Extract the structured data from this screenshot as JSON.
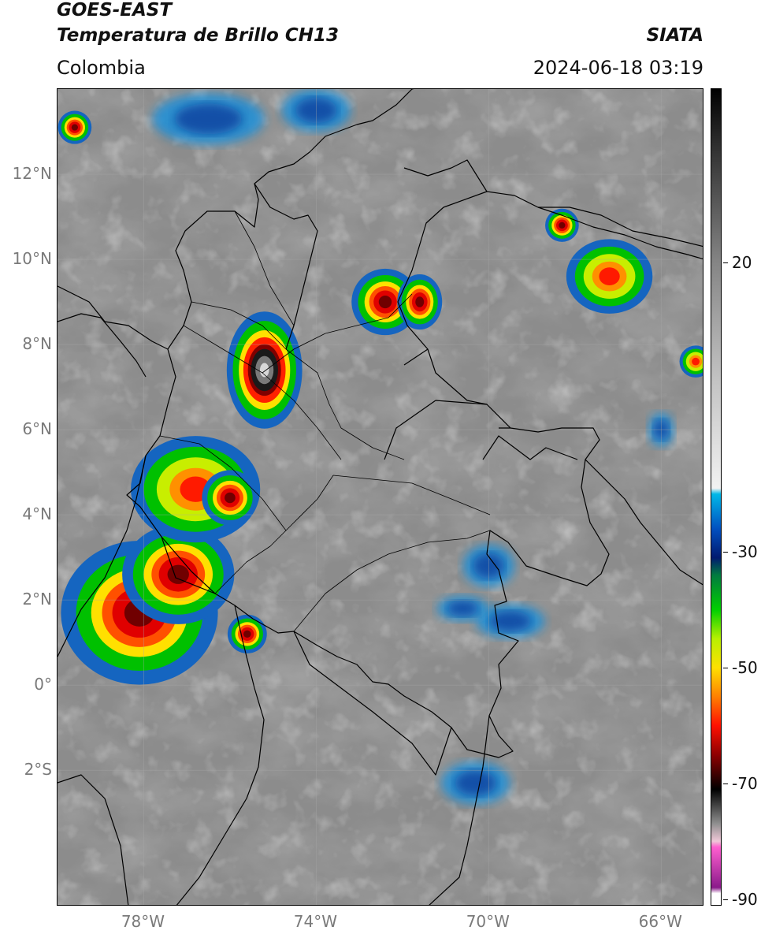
{
  "header": {
    "line1": "GOES-EAST",
    "line2": "Temperatura de Brillo CH13",
    "region": "Colombia",
    "source": "SIATA",
    "datetime": "2024-06-18 03:19"
  },
  "map": {
    "lat_ticks": [
      {
        "value": 12,
        "label": "12°N"
      },
      {
        "value": 10,
        "label": "10°N"
      },
      {
        "value": 8,
        "label": "8°N"
      },
      {
        "value": 6,
        "label": "6°N"
      },
      {
        "value": 4,
        "label": "4°N"
      },
      {
        "value": 2,
        "label": "2°N"
      },
      {
        "value": 0,
        "label": "0°"
      },
      {
        "value": -2,
        "label": "2°S"
      }
    ],
    "lon_ticks": [
      {
        "value": -78,
        "label": "78°W"
      },
      {
        "value": -74,
        "label": "74°W"
      },
      {
        "value": -70,
        "label": "70°W"
      },
      {
        "value": -66,
        "label": "66°W"
      }
    ],
    "extent": {
      "lon_min": -80.0,
      "lon_max": -65.0,
      "lat_min": -5.2,
      "lat_max": 14.0
    },
    "storm_cells": [
      {
        "lon": -78.1,
        "lat": 1.7,
        "rx": 1.4,
        "ry": 1.3,
        "intensity": "very-cold"
      },
      {
        "lon": -77.2,
        "lat": 2.6,
        "rx": 1.0,
        "ry": 0.9,
        "intensity": "very-cold"
      },
      {
        "lon": -76.8,
        "lat": 4.6,
        "rx": 1.2,
        "ry": 1.0,
        "intensity": "cold"
      },
      {
        "lon": -76.0,
        "lat": 4.4,
        "rx": 0.5,
        "ry": 0.5,
        "intensity": "very-cold"
      },
      {
        "lon": -75.2,
        "lat": 7.4,
        "rx": 0.7,
        "ry": 1.1,
        "intensity": "extreme"
      },
      {
        "lon": -72.4,
        "lat": 9.0,
        "rx": 0.6,
        "ry": 0.6,
        "intensity": "very-cold"
      },
      {
        "lon": -71.6,
        "lat": 9.0,
        "rx": 0.4,
        "ry": 0.5,
        "intensity": "very-cold"
      },
      {
        "lon": -75.6,
        "lat": 1.2,
        "rx": 0.35,
        "ry": 0.35,
        "intensity": "very-cold"
      },
      {
        "lon": -67.2,
        "lat": 9.6,
        "rx": 0.8,
        "ry": 0.7,
        "intensity": "cold"
      },
      {
        "lon": -68.3,
        "lat": 10.8,
        "rx": 0.3,
        "ry": 0.3,
        "intensity": "very-cold"
      },
      {
        "lon": -79.6,
        "lat": 13.1,
        "rx": 0.3,
        "ry": 0.3,
        "intensity": "very-cold"
      },
      {
        "lon": -65.2,
        "lat": 7.6,
        "rx": 0.3,
        "ry": 0.3,
        "intensity": "cold"
      }
    ],
    "cool_patches": [
      {
        "lon": -70.0,
        "lat": 2.8,
        "rx": 0.6,
        "ry": 0.5
      },
      {
        "lon": -69.5,
        "lat": 1.5,
        "rx": 0.8,
        "ry": 0.4
      },
      {
        "lon": -70.6,
        "lat": 1.8,
        "rx": 0.6,
        "ry": 0.3
      },
      {
        "lon": -70.3,
        "lat": -2.3,
        "rx": 0.8,
        "ry": 0.5
      },
      {
        "lon": -66.0,
        "lat": 6.0,
        "rx": 0.3,
        "ry": 0.4
      },
      {
        "lon": -76.5,
        "lat": 13.3,
        "rx": 1.3,
        "ry": 0.6
      },
      {
        "lon": -74.0,
        "lat": 13.5,
        "rx": 0.8,
        "ry": 0.5
      }
    ]
  },
  "colorbar": {
    "labels": [
      {
        "value": 20,
        "label": "20"
      },
      {
        "value": -30,
        "label": "-30"
      },
      {
        "value": -50,
        "label": "-50"
      },
      {
        "value": -70,
        "label": "-70"
      },
      {
        "value": -90,
        "label": "-90"
      }
    ],
    "stops": [
      {
        "value": 50,
        "color": "#000000"
      },
      {
        "value": 40,
        "color": "#303030"
      },
      {
        "value": 30,
        "color": "#5a5a5a"
      },
      {
        "value": 20,
        "color": "#858585"
      },
      {
        "value": 0,
        "color": "#c2c2c2"
      },
      {
        "value": -19,
        "color": "#f2f2f2"
      },
      {
        "value": -20,
        "color": "#00b8e8"
      },
      {
        "value": -26,
        "color": "#0050c0"
      },
      {
        "value": -31,
        "color": "#001a70"
      },
      {
        "value": -34,
        "color": "#007a40"
      },
      {
        "value": -40,
        "color": "#00d000"
      },
      {
        "value": -45,
        "color": "#b8f000"
      },
      {
        "value": -50,
        "color": "#ffe000"
      },
      {
        "value": -55,
        "color": "#ff8000"
      },
      {
        "value": -60,
        "color": "#ff1000"
      },
      {
        "value": -65,
        "color": "#900000"
      },
      {
        "value": -69,
        "color": "#300000"
      },
      {
        "value": -71,
        "color": "#000000"
      },
      {
        "value": -77,
        "color": "#909090"
      },
      {
        "value": -80,
        "color": "#f0c8d8"
      },
      {
        "value": -81,
        "color": "#ff60d0"
      },
      {
        "value": -88,
        "color": "#8a1a8a"
      },
      {
        "value": -89,
        "color": "#ffffff"
      },
      {
        "value": -91,
        "color": "#ffffff"
      }
    ],
    "range": [
      -91,
      50
    ]
  },
  "colors": {
    "background_gray": "#8c8c8c",
    "border_line": "#000000",
    "grid_line": "#a8a8a8",
    "tick_text": "#7a7a7a"
  }
}
